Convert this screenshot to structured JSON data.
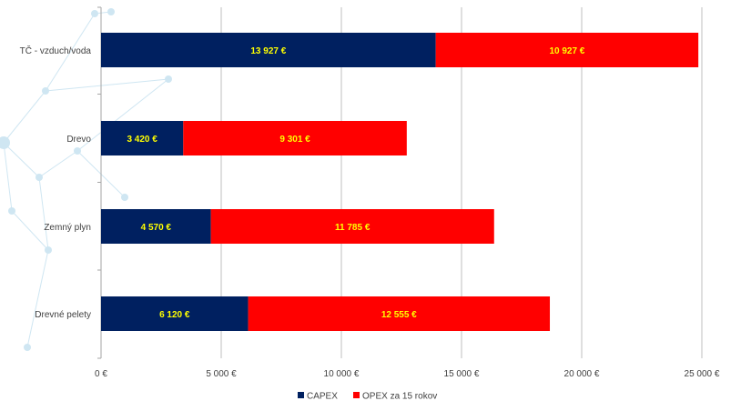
{
  "colors": {
    "capex": "#002060",
    "opex": "#ff0000",
    "label": "#ffff00",
    "grid": "#bfbfbf",
    "decor": "#cfe6f2"
  },
  "chart_data": {
    "type": "bar",
    "orientation": "horizontal",
    "stacked": true,
    "title": "",
    "xlabel": "",
    "ylabel": "",
    "categories": [
      "TČ - vzduch/voda",
      "Drevo",
      "Zemný plyn",
      "Drevné pelety"
    ],
    "series": [
      {
        "name": "CAPEX",
        "color": "#002060",
        "values": [
          13927,
          3420,
          4570,
          6120
        ],
        "labels": [
          "13 927 €",
          "3 420 €",
          "4 570 €",
          "6 120 €"
        ]
      },
      {
        "name": "OPEX za 15 rokov",
        "color": "#ff0000",
        "values": [
          10927,
          9301,
          11785,
          12555
        ],
        "labels": [
          "10 927 €",
          "9 301 €",
          "11 785 €",
          "12 555 €"
        ]
      }
    ],
    "xlim": [
      0,
      25000
    ],
    "xticks": [
      0,
      5000,
      10000,
      15000,
      20000,
      25000
    ],
    "xtick_labels": [
      "0 €",
      "5 000 €",
      "10 000 €",
      "15 000 €",
      "20 000 €",
      "25 000 €"
    ],
    "grid": true,
    "legend": "bottom"
  }
}
